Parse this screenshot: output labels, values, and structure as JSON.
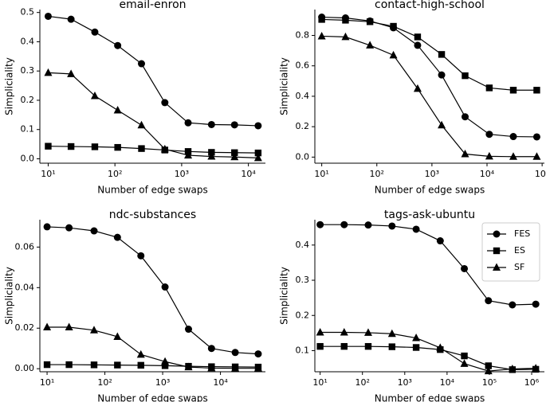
{
  "chart_data": [
    {
      "type": "line",
      "title": "email-enron",
      "xlabel": "Number of edge swaps",
      "ylabel": "Simpliciality",
      "xscale": "log",
      "x": [
        10,
        22,
        50,
        110,
        250,
        560,
        1250,
        2800,
        6200,
        14000
      ],
      "xlim": [
        7.5,
        18000
      ],
      "ylim": [
        -0.015,
        0.51
      ],
      "xticks": [
        {
          "value": 10,
          "label": "10¹"
        },
        {
          "value": 100,
          "label": "10²"
        },
        {
          "value": 1000,
          "label": "10³"
        },
        {
          "value": 10000,
          "label": "10⁴"
        }
      ],
      "yticks": [
        {
          "value": 0,
          "label": "0.0"
        },
        0.1,
        0.2,
        0.3,
        0.4,
        0.5
      ],
      "series": [
        {
          "color": "#000000",
          "marker": "circle",
          "values": [
            0.487,
            0.477,
            0.433,
            0.387,
            0.325,
            0.192,
            0.123,
            0.117,
            0.116,
            0.113
          ]
        },
        {
          "color": "#000000",
          "marker": "square",
          "values": [
            0.043,
            0.042,
            0.041,
            0.039,
            0.035,
            0.03,
            0.025,
            0.022,
            0.021,
            0.02
          ]
        },
        {
          "color": "#000000",
          "marker": "triangle",
          "values": [
            0.294,
            0.29,
            0.215,
            0.166,
            0.115,
            0.033,
            0.012,
            0.008,
            0.006,
            0.003
          ]
        }
      ]
    },
    {
      "type": "line",
      "title": "contact-high-school",
      "xlabel": "Number of edge swaps",
      "ylabel": "Simpliciality",
      "xscale": "log",
      "x": [
        10,
        27,
        75,
        200,
        550,
        1500,
        4000,
        11000,
        30000,
        80000
      ],
      "xlim": [
        7.5,
        110000
      ],
      "ylim": [
        -0.04,
        0.97
      ],
      "xticks": [
        {
          "value": 10,
          "label": "10¹"
        },
        {
          "value": 100,
          "label": "10²"
        },
        {
          "value": 1000,
          "label": "10³"
        },
        {
          "value": 10000,
          "label": "10⁴"
        },
        {
          "value": 100000,
          "label": "10⁵"
        }
      ],
      "yticks": [
        {
          "value": 0,
          "label": "0.0"
        },
        0.2,
        0.4,
        0.6,
        0.8
      ],
      "series": [
        {
          "color": "#000000",
          "marker": "circle",
          "values": [
            0.92,
            0.915,
            0.895,
            0.85,
            0.735,
            0.54,
            0.265,
            0.15,
            0.135,
            0.133
          ]
        },
        {
          "color": "#000000",
          "marker": "square",
          "values": [
            0.905,
            0.9,
            0.89,
            0.86,
            0.79,
            0.675,
            0.535,
            0.455,
            0.44,
            0.44
          ]
        },
        {
          "color": "#000000",
          "marker": "triangle",
          "values": [
            0.795,
            0.79,
            0.735,
            0.67,
            0.45,
            0.21,
            0.02,
            0.005,
            0.003,
            0.003
          ]
        }
      ]
    },
    {
      "type": "line",
      "title": "ndc-substances",
      "xlabel": "Number of edge swaps",
      "ylabel": "Simpliciality",
      "xscale": "log",
      "x": [
        10,
        24,
        65,
        165,
        420,
        1100,
        2800,
        7000,
        18000,
        45000
      ],
      "xlim": [
        7.5,
        60000
      ],
      "ylim": [
        -0.0015,
        0.0735
      ],
      "xticks": [
        {
          "value": 10,
          "label": "10¹"
        },
        {
          "value": 100,
          "label": "10²"
        },
        {
          "value": 1000,
          "label": "10³"
        },
        {
          "value": 10000,
          "label": "10⁴"
        }
      ],
      "yticks": [
        {
          "value": 0,
          "label": "0.00"
        },
        0.02,
        0.04,
        0.06
      ],
      "series": [
        {
          "color": "#000000",
          "marker": "circle",
          "values": [
            0.07,
            0.0695,
            0.068,
            0.0648,
            0.0557,
            0.0403,
            0.0195,
            0.01,
            0.008,
            0.0073
          ]
        },
        {
          "color": "#000000",
          "marker": "square",
          "values": [
            0.002,
            0.002,
            0.0019,
            0.0018,
            0.0017,
            0.0015,
            0.0012,
            0.001,
            0.0009,
            0.0008
          ]
        },
        {
          "color": "#000000",
          "marker": "triangle",
          "values": [
            0.0205,
            0.0205,
            0.019,
            0.0158,
            0.007,
            0.0035,
            0.0008,
            0.0003,
            0.0002,
            0.0002
          ]
        }
      ]
    },
    {
      "type": "line",
      "title": "tags-ask-ubuntu",
      "xlabel": "Number of edge swaps",
      "ylabel": "Simpliciality",
      "xscale": "log",
      "x": [
        10,
        37,
        137,
        500,
        1860,
        6900,
        25600,
        95000,
        350000,
        1250000
      ],
      "xlim": [
        7.5,
        2000000
      ],
      "ylim": [
        0.04,
        0.472
      ],
      "xticks": [
        {
          "value": 10,
          "label": "10¹"
        },
        {
          "value": 100,
          "label": "10²"
        },
        {
          "value": 1000,
          "label": "10³"
        },
        {
          "value": 10000,
          "label": "10⁴"
        },
        {
          "value": 100000,
          "label": "10⁵"
        },
        {
          "value": 1000000,
          "label": "10⁶"
        }
      ],
      "yticks": [
        0.1,
        0.2,
        0.3,
        0.4
      ],
      "legend": "upper right",
      "series": [
        {
          "name": "FES",
          "color": "#000000",
          "marker": "circle",
          "values": [
            0.458,
            0.458,
            0.457,
            0.454,
            0.445,
            0.412,
            0.333,
            0.242,
            0.23,
            0.232
          ]
        },
        {
          "name": "ES",
          "color": "#000000",
          "marker": "square",
          "values": [
            0.112,
            0.112,
            0.112,
            0.111,
            0.109,
            0.103,
            0.085,
            0.057,
            0.046,
            0.047
          ]
        },
        {
          "name": "SF",
          "color": "#000000",
          "marker": "triangle",
          "values": [
            0.152,
            0.152,
            0.151,
            0.148,
            0.136,
            0.108,
            0.063,
            0.042,
            0.048,
            0.05
          ]
        }
      ]
    }
  ]
}
